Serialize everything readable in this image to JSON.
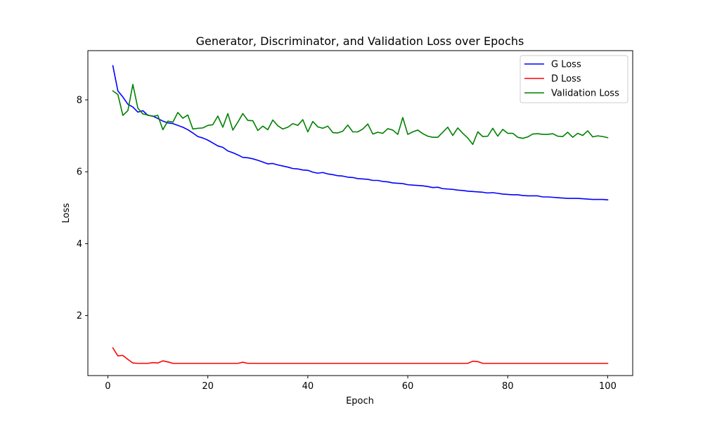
{
  "chart_data": {
    "type": "line",
    "title": "Generator, Discriminator, and Validation Loss over Epochs",
    "xlabel": "Epoch",
    "ylabel": "Loss",
    "xlim": [
      -4,
      105
    ],
    "ylim": [
      0.33,
      9.37
    ],
    "xticks": [
      0,
      20,
      40,
      60,
      80,
      100
    ],
    "yticks": [
      2,
      4,
      6,
      8
    ],
    "grid": false,
    "legend_position": "top-right",
    "x": [
      1,
      2,
      3,
      4,
      5,
      6,
      7,
      8,
      9,
      10,
      11,
      12,
      13,
      14,
      15,
      16,
      17,
      18,
      19,
      20,
      21,
      22,
      23,
      24,
      25,
      26,
      27,
      28,
      29,
      30,
      31,
      32,
      33,
      34,
      35,
      36,
      37,
      38,
      39,
      40,
      41,
      42,
      43,
      44,
      45,
      46,
      47,
      48,
      49,
      50,
      51,
      52,
      53,
      54,
      55,
      56,
      57,
      58,
      59,
      60,
      61,
      62,
      63,
      64,
      65,
      66,
      67,
      68,
      69,
      70,
      71,
      72,
      73,
      74,
      75,
      76,
      77,
      78,
      79,
      80,
      81,
      82,
      83,
      84,
      85,
      86,
      87,
      88,
      89,
      90,
      91,
      92,
      93,
      94,
      95,
      96,
      97,
      98,
      99,
      100
    ],
    "series": [
      {
        "name": "G Loss",
        "color": "#0000ff",
        "values": [
          8.95,
          8.25,
          8.08,
          7.88,
          7.8,
          7.66,
          7.7,
          7.57,
          7.55,
          7.48,
          7.41,
          7.36,
          7.34,
          7.29,
          7.24,
          7.17,
          7.08,
          6.98,
          6.94,
          6.88,
          6.8,
          6.72,
          6.68,
          6.58,
          6.53,
          6.47,
          6.4,
          6.39,
          6.36,
          6.32,
          6.27,
          6.22,
          6.23,
          6.19,
          6.16,
          6.13,
          6.09,
          6.08,
          6.05,
          6.04,
          5.99,
          5.96,
          5.98,
          5.94,
          5.92,
          5.89,
          5.88,
          5.85,
          5.84,
          5.81,
          5.8,
          5.79,
          5.76,
          5.76,
          5.73,
          5.72,
          5.69,
          5.68,
          5.67,
          5.64,
          5.63,
          5.62,
          5.61,
          5.59,
          5.56,
          5.57,
          5.53,
          5.52,
          5.51,
          5.49,
          5.48,
          5.46,
          5.45,
          5.44,
          5.43,
          5.41,
          5.42,
          5.4,
          5.38,
          5.37,
          5.36,
          5.36,
          5.34,
          5.33,
          5.33,
          5.33,
          5.3,
          5.3,
          5.29,
          5.28,
          5.27,
          5.26,
          5.26,
          5.26,
          5.25,
          5.24,
          5.23,
          5.23,
          5.23,
          5.22
        ]
      },
      {
        "name": "D Loss",
        "color": "#ff0000",
        "values": [
          1.1,
          0.88,
          0.89,
          0.78,
          0.68,
          0.67,
          0.67,
          0.67,
          0.69,
          0.68,
          0.74,
          0.71,
          0.67,
          0.67,
          0.67,
          0.67,
          0.67,
          0.67,
          0.67,
          0.67,
          0.67,
          0.67,
          0.67,
          0.67,
          0.67,
          0.67,
          0.7,
          0.67,
          0.67,
          0.67,
          0.67,
          0.67,
          0.67,
          0.67,
          0.67,
          0.67,
          0.67,
          0.67,
          0.67,
          0.67,
          0.67,
          0.67,
          0.67,
          0.67,
          0.67,
          0.67,
          0.67,
          0.67,
          0.67,
          0.67,
          0.67,
          0.67,
          0.67,
          0.67,
          0.67,
          0.67,
          0.67,
          0.67,
          0.67,
          0.67,
          0.67,
          0.67,
          0.67,
          0.67,
          0.67,
          0.67,
          0.67,
          0.67,
          0.67,
          0.67,
          0.67,
          0.67,
          0.73,
          0.72,
          0.67,
          0.67,
          0.67,
          0.67,
          0.67,
          0.67,
          0.67,
          0.67,
          0.67,
          0.67,
          0.67,
          0.67,
          0.67,
          0.67,
          0.67,
          0.67,
          0.67,
          0.67,
          0.67,
          0.67,
          0.67,
          0.67,
          0.67,
          0.67,
          0.67,
          0.67
        ]
      },
      {
        "name": "Validation Loss",
        "color": "#008000",
        "values": [
          8.25,
          8.15,
          7.57,
          7.7,
          8.43,
          7.77,
          7.61,
          7.58,
          7.54,
          7.57,
          7.17,
          7.41,
          7.38,
          7.65,
          7.49,
          7.58,
          7.19,
          7.21,
          7.22,
          7.29,
          7.31,
          7.55,
          7.24,
          7.62,
          7.16,
          7.38,
          7.62,
          7.43,
          7.42,
          7.15,
          7.27,
          7.17,
          7.44,
          7.28,
          7.19,
          7.24,
          7.34,
          7.29,
          7.45,
          7.11,
          7.4,
          7.25,
          7.21,
          7.27,
          7.09,
          7.08,
          7.13,
          7.3,
          7.11,
          7.11,
          7.19,
          7.33,
          7.05,
          7.1,
          7.07,
          7.2,
          7.16,
          7.04,
          7.51,
          7.04,
          7.11,
          7.16,
          7.06,
          6.99,
          6.96,
          6.96,
          7.1,
          7.24,
          7.01,
          7.22,
          7.07,
          6.94,
          6.76,
          7.11,
          6.98,
          6.99,
          7.21,
          6.99,
          7.18,
          7.07,
          7.07,
          6.96,
          6.93,
          6.97,
          7.05,
          7.06,
          7.04,
          7.04,
          7.06,
          6.99,
          6.98,
          7.1,
          6.96,
          7.07,
          7.01,
          7.14,
          6.97,
          7.0,
          6.98,
          6.95
        ]
      }
    ]
  }
}
